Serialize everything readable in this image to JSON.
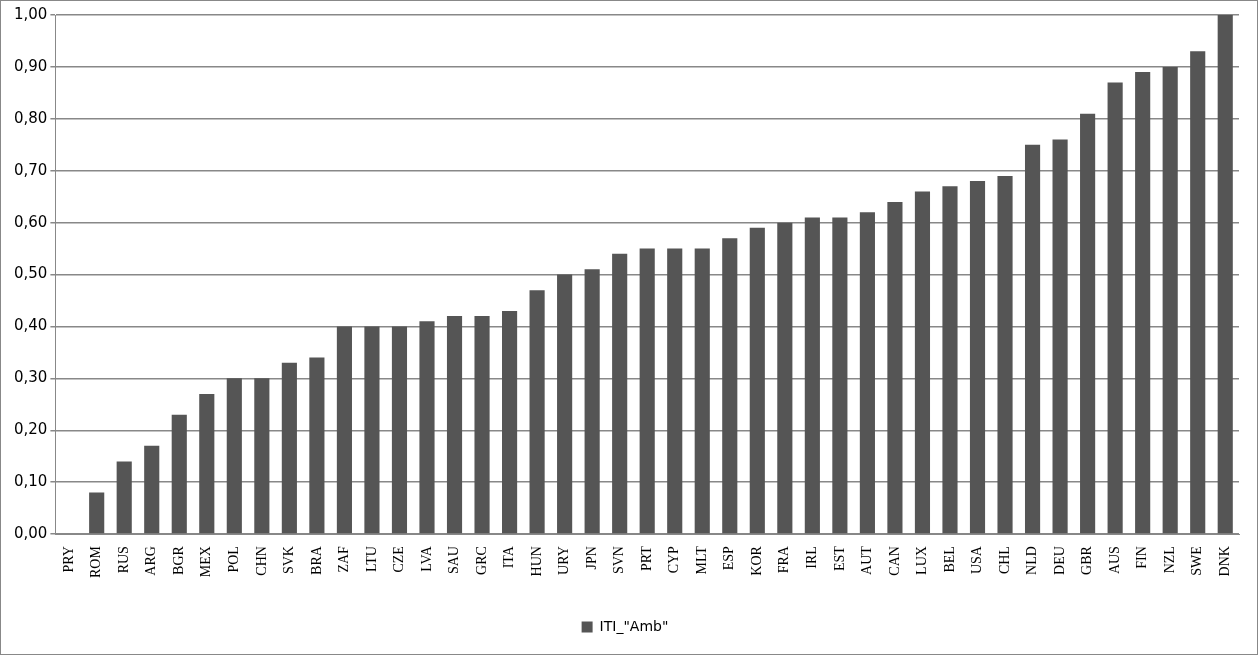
{
  "chart_data": {
    "type": "bar",
    "categories": [
      "PRY",
      "ROM",
      "RUS",
      "ARG",
      "BGR",
      "MEX",
      "POL",
      "CHN",
      "SVK",
      "BRA",
      "ZAF",
      "LTU",
      "CZE",
      "LVA",
      "SAU",
      "GRC",
      "ITA",
      "HUN",
      "URY",
      "JPN",
      "SVN",
      "PRT",
      "CYP",
      "MLT",
      "ESP",
      "KOR",
      "FRA",
      "IRL",
      "EST",
      "AUT",
      "CAN",
      "LUX",
      "BEL",
      "USA",
      "CHL",
      "NLD",
      "DEU",
      "GBR",
      "AUS",
      "FIN",
      "NZL",
      "SWE",
      "DNK"
    ],
    "series": [
      {
        "name": "ITI_\"Amb\"",
        "color": "#555555",
        "values": [
          0,
          0.08,
          0.14,
          0.17,
          0.23,
          0.27,
          0.3,
          0.3,
          0.33,
          0.34,
          0.4,
          0.4,
          0.4,
          0.41,
          0.42,
          0.42,
          0.43,
          0.47,
          0.5,
          0.51,
          0.54,
          0.55,
          0.55,
          0.55,
          0.57,
          0.59,
          0.6,
          0.61,
          0.61,
          0.62,
          0.64,
          0.66,
          0.67,
          0.68,
          0.69,
          0.75,
          0.76,
          0.81,
          0.87,
          0.89,
          0.9,
          0.93,
          1.0
        ]
      }
    ],
    "ylim": [
      0,
      1
    ],
    "yticks": [
      {
        "value": 0,
        "label": "0,00"
      },
      {
        "value": 0.1,
        "label": "0,10"
      },
      {
        "value": 0.2,
        "label": "0,20"
      },
      {
        "value": 0.3,
        "label": "0,30"
      },
      {
        "value": 0.4,
        "label": "0,40"
      },
      {
        "value": 0.5,
        "label": "0,50"
      },
      {
        "value": 0.6,
        "label": "0,60"
      },
      {
        "value": 0.7,
        "label": "0,70"
      },
      {
        "value": 0.8,
        "label": "0,80"
      },
      {
        "value": 0.9,
        "label": "0,90"
      },
      {
        "value": 1,
        "label": "1,00"
      }
    ],
    "grid": "y",
    "legend": "bottom"
  }
}
